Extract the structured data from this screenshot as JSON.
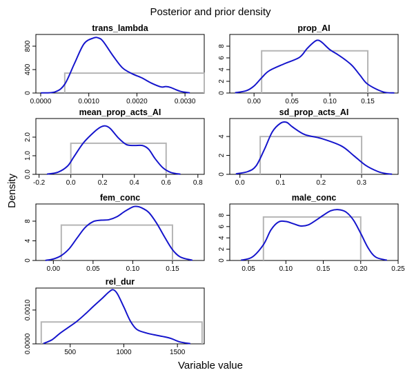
{
  "figure": {
    "title": "Posterior and prior density",
    "xlabel": "Variable value",
    "ylabel": "Density"
  },
  "colors": {
    "posterior": "#1515cc",
    "prior": "#b5b5b5",
    "axis": "#000000"
  },
  "chart_data": [
    {
      "type": "line",
      "title": "trans_lambda",
      "xlim": [
        -0.0001,
        0.0034
      ],
      "ylim": [
        0,
        1000
      ],
      "xticks": [
        0.0,
        0.001,
        0.002,
        0.003
      ],
      "xtick_labels": [
        "0.0000",
        "0.0010",
        "0.0020",
        "0.0030"
      ],
      "yticks": [
        0,
        400,
        800
      ],
      "ytick_labels": [
        "0",
        "400",
        "800"
      ],
      "posterior": {
        "x": [
          0.0,
          0.0003,
          0.0005,
          0.0007,
          0.0009,
          0.0011,
          0.0012,
          0.0013,
          0.0015,
          0.0017,
          0.0019,
          0.0021,
          0.0023,
          0.0025,
          0.0026,
          0.0027,
          0.0029,
          0.0031
        ],
        "y": [
          2,
          20,
          150,
          500,
          840,
          940,
          940,
          880,
          640,
          430,
          330,
          260,
          170,
          105,
          110,
          95,
          30,
          3
        ]
      },
      "prior": {
        "x": [
          0.0005,
          0.0034
        ],
        "y": [
          0,
          340
        ]
      }
    },
    {
      "type": "line",
      "title": "prop_AI",
      "xlim": [
        -0.032,
        0.19
      ],
      "ylim": [
        0,
        10
      ],
      "xticks": [
        0.0,
        0.05,
        0.1,
        0.15
      ],
      "xtick_labels": [
        "0.00",
        "0.05",
        "0.10",
        "0.15"
      ],
      "yticks": [
        0,
        2,
        4,
        6,
        8
      ],
      "ytick_labels": [
        "0",
        "2",
        "4",
        "6",
        "8"
      ],
      "posterior": {
        "x": [
          -0.025,
          -0.01,
          0.0,
          0.01,
          0.02,
          0.04,
          0.06,
          0.07,
          0.08,
          0.085,
          0.09,
          0.1,
          0.11,
          0.12,
          0.13,
          0.14,
          0.15,
          0.17,
          0.185
        ],
        "y": [
          0.05,
          0.4,
          1.2,
          2.6,
          3.8,
          5.0,
          6.1,
          7.6,
          8.8,
          9.0,
          8.6,
          7.4,
          6.6,
          5.7,
          4.6,
          3.0,
          1.5,
          0.2,
          0.02
        ]
      },
      "prior": {
        "x": [
          0.01,
          0.15
        ],
        "y": [
          0,
          7.2
        ]
      }
    },
    {
      "type": "line",
      "title": "mean_prop_acts_AI",
      "xlim": [
        -0.22,
        0.84
      ],
      "ylim": [
        0,
        3
      ],
      "xticks": [
        -0.2,
        0.0,
        0.2,
        0.4,
        0.6,
        0.8
      ],
      "xtick_labels": [
        "-0.2",
        "0.0",
        "0.2",
        "0.4",
        "0.6",
        "0.8"
      ],
      "yticks": [
        0,
        1,
        2
      ],
      "ytick_labels": [
        "0.0",
        "1.0",
        "2.0"
      ],
      "posterior": {
        "x": [
          -0.15,
          -0.08,
          -0.02,
          0.02,
          0.08,
          0.15,
          0.19,
          0.22,
          0.25,
          0.3,
          0.35,
          0.4,
          0.45,
          0.49,
          0.53,
          0.58,
          0.63,
          0.69
        ],
        "y": [
          0.01,
          0.12,
          0.45,
          0.95,
          1.7,
          2.3,
          2.55,
          2.6,
          2.45,
          1.95,
          1.6,
          1.55,
          1.55,
          1.35,
          0.85,
          0.35,
          0.1,
          0.01
        ]
      },
      "prior": {
        "x": [
          0.0,
          0.6
        ],
        "y": [
          0,
          1.67
        ]
      }
    },
    {
      "type": "line",
      "title": "sd_prop_acts_AI",
      "xlim": [
        -0.025,
        0.39
      ],
      "ylim": [
        0,
        5.9
      ],
      "xticks": [
        0.0,
        0.1,
        0.2,
        0.3
      ],
      "xtick_labels": [
        "0.0",
        "0.1",
        "0.2",
        "0.3"
      ],
      "yticks": [
        0,
        2,
        4
      ],
      "ytick_labels": [
        "0",
        "2",
        "4"
      ],
      "posterior": {
        "x": [
          -0.01,
          0.02,
          0.04,
          0.06,
          0.08,
          0.1,
          0.115,
          0.13,
          0.16,
          0.2,
          0.25,
          0.28,
          0.31,
          0.34,
          0.36,
          0.375
        ],
        "y": [
          0.05,
          0.3,
          0.9,
          2.6,
          4.5,
          5.4,
          5.5,
          5.0,
          4.2,
          3.8,
          3.0,
          2.0,
          0.95,
          0.3,
          0.08,
          0.02
        ]
      },
      "prior": {
        "x": [
          0.05,
          0.3
        ],
        "y": [
          0,
          4.0
        ]
      }
    },
    {
      "type": "line",
      "title": "fem_conc",
      "xlim": [
        -0.022,
        0.19
      ],
      "ylim": [
        0,
        11.5
      ],
      "xticks": [
        0.0,
        0.05,
        0.1,
        0.15
      ],
      "xtick_labels": [
        "0.00",
        "0.05",
        "0.10",
        "0.15"
      ],
      "yticks": [
        0,
        4,
        8
      ],
      "ytick_labels": [
        "0",
        "4",
        "8"
      ],
      "posterior": {
        "x": [
          -0.01,
          0.0,
          0.01,
          0.02,
          0.03,
          0.04,
          0.05,
          0.06,
          0.07,
          0.08,
          0.09,
          0.1,
          0.105,
          0.11,
          0.12,
          0.13,
          0.14,
          0.15,
          0.16,
          0.175
        ],
        "y": [
          0.02,
          0.3,
          1.0,
          2.4,
          4.6,
          6.7,
          7.9,
          8.2,
          8.3,
          8.9,
          10.0,
          10.9,
          11.0,
          10.8,
          9.8,
          7.6,
          4.8,
          2.2,
          0.7,
          0.05
        ]
      },
      "prior": {
        "x": [
          0.01,
          0.15
        ],
        "y": [
          0,
          7.2
        ]
      }
    },
    {
      "type": "line",
      "title": "male_conc",
      "xlim": [
        0.025,
        0.25
      ],
      "ylim": [
        0,
        10
      ],
      "xticks": [
        0.05,
        0.1,
        0.15,
        0.2,
        0.25
      ],
      "xtick_labels": [
        "0.05",
        "0.10",
        "0.15",
        "0.20",
        "0.25"
      ],
      "yticks": [
        0,
        2,
        4,
        6,
        8
      ],
      "ytick_labels": [
        "0",
        "2",
        "4",
        "6",
        "8"
      ],
      "posterior": {
        "x": [
          0.04,
          0.055,
          0.07,
          0.08,
          0.09,
          0.1,
          0.11,
          0.12,
          0.13,
          0.14,
          0.15,
          0.16,
          0.17,
          0.18,
          0.19,
          0.2,
          0.21,
          0.22,
          0.235
        ],
        "y": [
          0.05,
          0.6,
          2.8,
          5.4,
          6.8,
          6.9,
          6.5,
          6.1,
          6.3,
          7.1,
          8.0,
          8.8,
          9.0,
          8.6,
          7.2,
          4.8,
          2.2,
          0.6,
          0.05
        ]
      },
      "prior": {
        "x": [
          0.07,
          0.2
        ],
        "y": [
          0,
          7.7
        ]
      }
    },
    {
      "type": "line",
      "title": "rel_dur",
      "xlim": [
        180,
        1750
      ],
      "ylim": [
        0,
        0.00165
      ],
      "xticks": [
        500,
        1000,
        1500
      ],
      "xtick_labels": [
        "500",
        "1000",
        "1500"
      ],
      "yticks": [
        0,
        0.001
      ],
      "ytick_labels": [
        "0.0000",
        "0.0010"
      ],
      "posterior": {
        "x": [
          250,
          330,
          400,
          480,
          560,
          640,
          720,
          800,
          860,
          900,
          940,
          1000,
          1060,
          1120,
          1200,
          1280,
          1360,
          1440,
          1520,
          1620
        ],
        "y": [
          1e-05,
          0.00012,
          0.0003,
          0.00048,
          0.00066,
          0.00088,
          0.00112,
          0.00135,
          0.00153,
          0.0016,
          0.00148,
          0.00109,
          0.00068,
          0.00043,
          0.00033,
          0.00027,
          0.00022,
          0.00016,
          6e-05,
          5e-06
        ]
      },
      "prior": {
        "x": [
          230,
          1730
        ],
        "y": [
          0,
          0.000646
        ]
      }
    }
  ]
}
